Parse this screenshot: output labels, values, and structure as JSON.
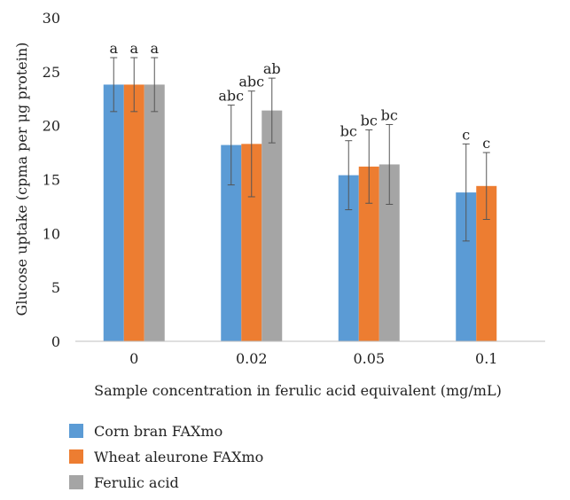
{
  "chart_data": {
    "type": "bar",
    "title": "",
    "xlabel": "Sample concentration in ferulic acid equivalent (mg/mL)",
    "ylabel": "Glucose uptake (cpma per μg protein)",
    "ylim": [
      0,
      30
    ],
    "yticks": [
      "0",
      "5",
      "10",
      "15",
      "20",
      "25",
      "30"
    ],
    "categories": [
      "0",
      "0.02",
      "0.05",
      "0.1"
    ],
    "series": [
      {
        "name": "Corn bran FAXmo",
        "color": "#5b9bd5",
        "values": [
          23.8,
          18.2,
          15.4,
          13.8
        ],
        "errors": [
          2.5,
          3.7,
          3.2,
          4.5
        ],
        "labels": [
          "a",
          "abc",
          "bc",
          "c"
        ]
      },
      {
        "name": "Wheat aleurone FAXmo",
        "color": "#ed7d31",
        "values": [
          23.8,
          18.3,
          16.2,
          14.4
        ],
        "errors": [
          2.5,
          4.9,
          3.4,
          3.1
        ],
        "labels": [
          "a",
          "abc",
          "bc",
          "c"
        ]
      },
      {
        "name": "Ferulic acid",
        "color": "#a5a5a5",
        "values": [
          23.8,
          21.4,
          16.4,
          null
        ],
        "errors": [
          2.5,
          3.0,
          3.7,
          null
        ],
        "labels": [
          "a",
          "ab",
          "bc",
          ""
        ]
      }
    ],
    "grid": false,
    "legend_position": "bottom-left"
  }
}
